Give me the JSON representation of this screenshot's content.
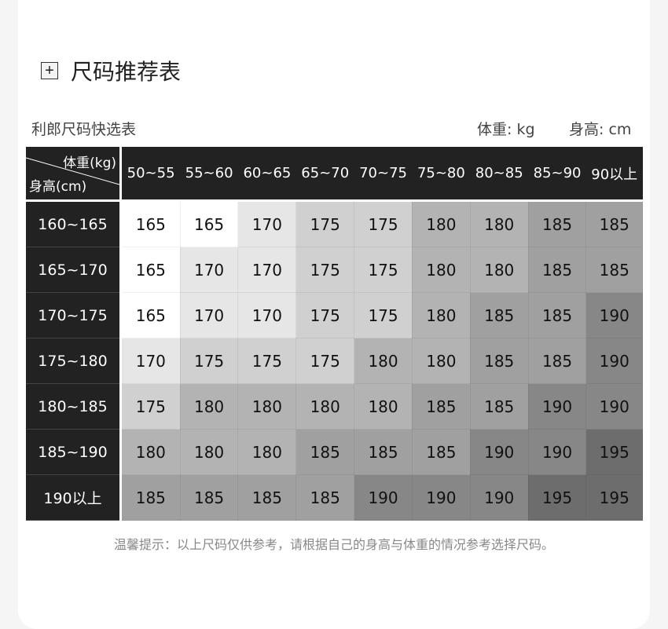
{
  "title": "尺码推荐表",
  "title_icon": "plus-square-icon",
  "subtitle": "利郎尺码快选表",
  "units": {
    "weight": "体重: kg",
    "height": "身高: cm"
  },
  "table": {
    "corner_weight": "体重(kg)",
    "corner_height": "身高(cm)",
    "columns": [
      "50~55",
      "55~60",
      "60~65",
      "65~70",
      "70~75",
      "75~80",
      "80~85",
      "85~90",
      "90以上"
    ],
    "rows": [
      {
        "label": "160~165",
        "values": [
          "165",
          "165",
          "170",
          "175",
          "175",
          "180",
          "180",
          "185",
          "185"
        ]
      },
      {
        "label": "165~170",
        "values": [
          "165",
          "170",
          "170",
          "175",
          "175",
          "180",
          "180",
          "185",
          "185"
        ]
      },
      {
        "label": "170~175",
        "values": [
          "165",
          "170",
          "170",
          "175",
          "175",
          "180",
          "185",
          "185",
          "190"
        ]
      },
      {
        "label": "175~180",
        "values": [
          "170",
          "175",
          "175",
          "175",
          "180",
          "180",
          "185",
          "185",
          "190"
        ]
      },
      {
        "label": "180~185",
        "values": [
          "175",
          "180",
          "180",
          "180",
          "180",
          "185",
          "185",
          "190",
          "190"
        ]
      },
      {
        "label": "185~190",
        "values": [
          "180",
          "180",
          "180",
          "185",
          "185",
          "185",
          "190",
          "190",
          "195"
        ]
      },
      {
        "label": "190以上",
        "values": [
          "185",
          "185",
          "185",
          "185",
          "190",
          "190",
          "190",
          "195",
          "195"
        ]
      }
    ],
    "size_colors": {
      "165": "#ffffff",
      "170": "#e6e6e6",
      "175": "#d0d0d0",
      "180": "#b3b3b3",
      "185": "#a0a0a0",
      "190": "#878787",
      "195": "#6d6d6d"
    }
  },
  "note": "温馨提示：以上尺码仅供参考，请根据自己的身高与体重的情况参考选择尺码。"
}
